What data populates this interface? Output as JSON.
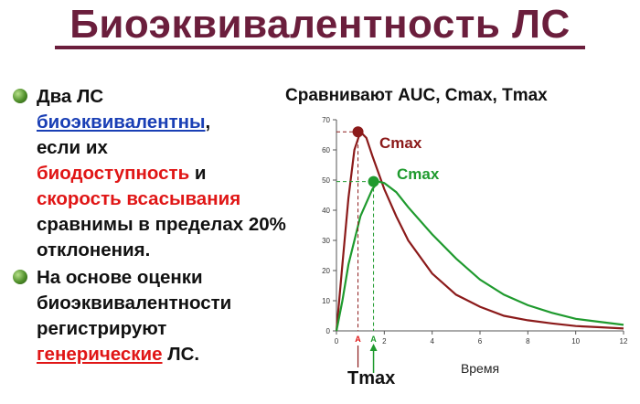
{
  "slide": {
    "title": "Биоэквивалентность ЛС",
    "bullets": [
      {
        "icon": "green-sphere-bullet-icon",
        "parts": [
          {
            "text": "Два ЛС",
            "style": "plain"
          },
          {
            "text": "биоэквивалентны",
            "style": "blue"
          },
          {
            "text": ",",
            "style": "plain"
          },
          {
            "text": "если их",
            "style": "plain"
          },
          {
            "text": "биодоступность",
            "style": "red"
          },
          {
            "text": " и",
            "style": "plain"
          },
          {
            "text": "скорость  всасывания",
            "style": "red"
          },
          {
            "text": "сравнимы в пределах 20% отклонения.",
            "style": "plain"
          }
        ]
      },
      {
        "icon": "green-sphere-bullet-icon",
        "parts": [
          {
            "text": "На основе оценки биоэквивалентности регистрируют",
            "style": "plain"
          },
          {
            "text": "генерические",
            "style": "red-underline"
          },
          {
            "text": " ЛС.",
            "style": "plain"
          }
        ]
      }
    ],
    "chart_heading": "Сравнивают AUC, Cmax, Tmax"
  },
  "colors": {
    "title": "#6b1e3c",
    "curve_a": "#8b1a1a",
    "curve_b": "#1f9a2e",
    "highlight_red": "#e01616",
    "highlight_blue": "#1a3fb5"
  },
  "chart_data": {
    "type": "line",
    "xlabel": "Время",
    "ylabel": "",
    "xlim": [
      0,
      12
    ],
    "ylim": [
      0,
      70
    ],
    "x_ticks": [
      0,
      2,
      4,
      6,
      8,
      10,
      12
    ],
    "y_ticks": [
      0,
      10,
      20,
      30,
      40,
      50,
      60,
      70
    ],
    "grid": false,
    "series": [
      {
        "color": "#8b1a1a",
        "x": [
          0,
          0.25,
          0.5,
          0.75,
          1.0,
          1.25,
          1.5,
          2.0,
          2.5,
          3.0,
          4.0,
          5.0,
          6.0,
          7.0,
          8.0,
          9.0,
          10.0,
          11.0,
          12.0
        ],
        "y": [
          0,
          22,
          44,
          60,
          66,
          64,
          58,
          47,
          38,
          30,
          19,
          12,
          8,
          5,
          3.5,
          2.5,
          1.6,
          1.2,
          0.8
        ]
      },
      {
        "color": "#1f9a2e",
        "x": [
          0,
          0.25,
          0.5,
          1.0,
          1.5,
          1.75,
          2.0,
          2.5,
          3.0,
          4.0,
          5.0,
          6.0,
          7.0,
          8.0,
          9.0,
          10.0,
          11.0,
          12.0
        ],
        "y": [
          0,
          10,
          22,
          38,
          47,
          49.5,
          49,
          46,
          41,
          32,
          24,
          17,
          12,
          8.5,
          6,
          4,
          3,
          2
        ]
      }
    ],
    "peaks": [
      {
        "x": 0.9,
        "y": 66,
        "label": "Cmax",
        "color": "#8b1a1a",
        "tick_label": "A"
      },
      {
        "x": 1.55,
        "y": 49.5,
        "label": "Cmax",
        "color": "#1f9a2e",
        "tick_label": "A"
      }
    ],
    "tmax_label": "Tmax"
  }
}
